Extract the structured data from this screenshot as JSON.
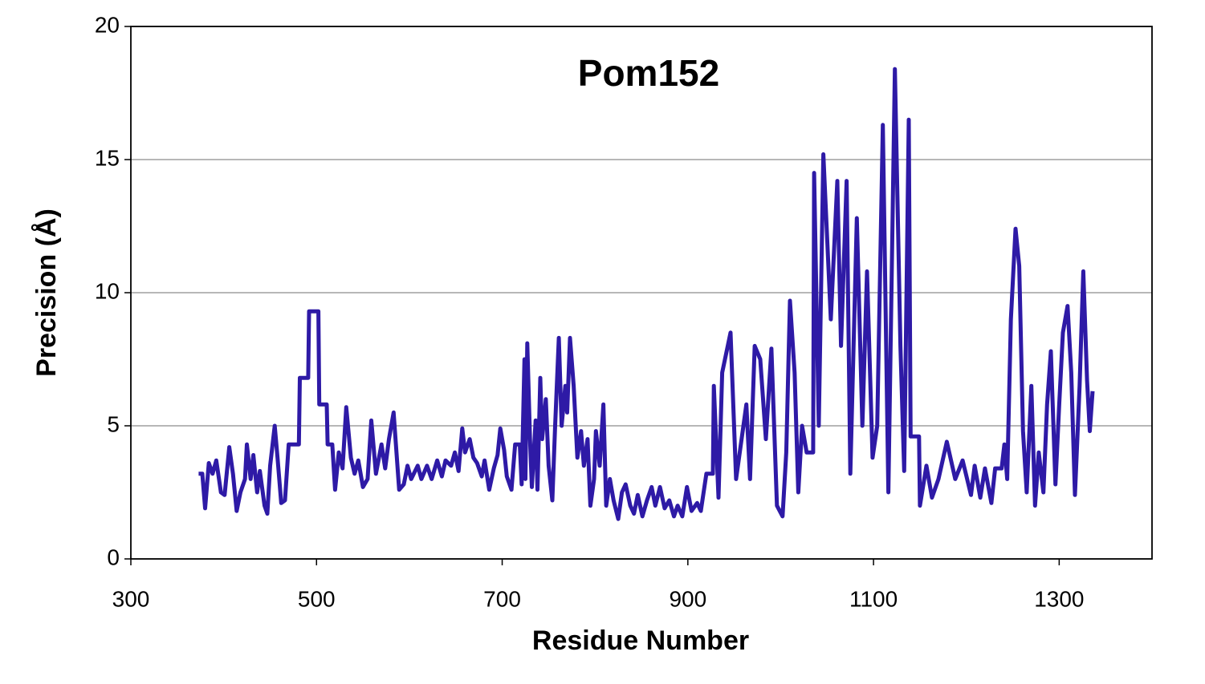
{
  "chart_data": {
    "type": "line",
    "title": "Pom152",
    "x_label": "Residue Number",
    "y_label": "Precision (Å)",
    "color": "#2e1aa6",
    "grid": true,
    "xlim": [
      300,
      1400
    ],
    "xticks": [
      300,
      500,
      700,
      900,
      1100,
      1300
    ],
    "ylim": [
      0,
      20
    ],
    "yticks": [
      0,
      5,
      10,
      15,
      20
    ],
    "x": [
      373,
      377,
      380,
      384,
      388,
      392,
      397,
      401,
      406,
      410,
      414,
      418,
      423,
      425,
      429,
      432,
      436,
      439,
      444,
      447,
      450,
      455,
      458,
      462,
      466,
      470,
      481,
      482,
      491,
      492,
      502,
      503,
      511,
      512,
      517,
      520,
      524,
      528,
      532,
      537,
      541,
      545,
      550,
      555,
      559,
      564,
      570,
      574,
      578,
      583,
      589,
      594,
      598,
      602,
      609,
      613,
      619,
      624,
      630,
      635,
      639,
      645,
      649,
      653,
      657,
      660,
      665,
      669,
      673,
      678,
      681,
      686,
      691,
      695,
      698,
      702,
      705,
      710,
      714,
      719,
      721,
      724,
      725,
      727,
      730,
      732,
      736,
      738,
      741,
      743,
      747,
      750,
      754,
      757,
      761,
      764,
      768,
      770,
      773,
      777,
      781,
      785,
      788,
      792,
      795,
      799,
      801,
      805,
      809,
      812,
      816,
      820,
      825,
      829,
      833,
      838,
      842,
      846,
      851,
      856,
      861,
      865,
      870,
      875,
      880,
      885,
      889,
      894,
      899,
      904,
      910,
      914,
      920,
      927,
      928,
      933,
      937,
      946,
      952,
      963,
      967,
      972,
      978,
      984,
      990,
      996,
      1002,
      1006,
      1010,
      1015,
      1019,
      1023,
      1028,
      1035,
      1036,
      1041,
      1046,
      1054,
      1061,
      1065,
      1071,
      1075,
      1082,
      1088,
      1093,
      1099,
      1104,
      1110,
      1116,
      1123,
      1129,
      1133,
      1138,
      1140,
      1149,
      1150,
      1157,
      1163,
      1170,
      1179,
      1188,
      1196,
      1205,
      1209,
      1215,
      1220,
      1227,
      1231,
      1238,
      1241,
      1244,
      1248,
      1253,
      1257,
      1261,
      1265,
      1270,
      1274,
      1278,
      1283,
      1287,
      1291,
      1296,
      1300,
      1304,
      1309,
      1313,
      1317,
      1322,
      1326,
      1330,
      1333,
      1336
    ],
    "values": [
      3.2,
      3.2,
      1.9,
      3.6,
      3.2,
      3.7,
      2.5,
      2.4,
      4.2,
      3.2,
      1.8,
      2.5,
      3.0,
      4.3,
      3.0,
      3.9,
      2.5,
      3.3,
      2.0,
      1.7,
      3.5,
      5.0,
      3.8,
      2.1,
      2.2,
      4.3,
      4.3,
      6.8,
      6.8,
      9.3,
      9.3,
      5.8,
      5.8,
      4.3,
      4.3,
      2.6,
      4.0,
      3.4,
      5.7,
      3.8,
      3.2,
      3.7,
      2.7,
      3.0,
      5.2,
      3.2,
      4.3,
      3.4,
      4.5,
      5.5,
      2.6,
      2.8,
      3.5,
      3.0,
      3.5,
      3.0,
      3.5,
      3.0,
      3.7,
      3.1,
      3.7,
      3.5,
      4.0,
      3.3,
      4.9,
      4.0,
      4.5,
      3.8,
      3.6,
      3.1,
      3.7,
      2.6,
      3.4,
      3.9,
      4.9,
      4.1,
      3.1,
      2.6,
      4.3,
      4.3,
      2.8,
      7.5,
      3.0,
      8.1,
      4.5,
      2.7,
      5.2,
      2.6,
      6.8,
      4.5,
      6.0,
      3.5,
      2.2,
      5.0,
      8.3,
      5.0,
      6.5,
      5.5,
      8.3,
      6.5,
      3.8,
      4.8,
      3.5,
      4.5,
      2.0,
      3.0,
      4.8,
      3.5,
      5.8,
      2.0,
      3.0,
      2.2,
      1.5,
      2.5,
      2.8,
      2.0,
      1.7,
      2.4,
      1.6,
      2.2,
      2.7,
      2.0,
      2.7,
      1.9,
      2.2,
      1.6,
      2.0,
      1.6,
      2.7,
      1.8,
      2.1,
      1.8,
      3.2,
      3.2,
      6.5,
      2.3,
      7.0,
      8.5,
      3.0,
      5.8,
      3.0,
      8.0,
      7.5,
      4.5,
      7.9,
      2.0,
      1.6,
      4.0,
      9.7,
      7.0,
      2.5,
      5.0,
      4.0,
      4.0,
      14.5,
      5.0,
      15.2,
      9.0,
      14.2,
      8.0,
      14.2,
      3.2,
      12.8,
      5.0,
      10.8,
      3.8,
      5.0,
      16.3,
      2.5,
      18.4,
      8.0,
      3.3,
      16.5,
      4.6,
      4.6,
      2.0,
      3.5,
      2.3,
      3.0,
      4.4,
      3.0,
      3.7,
      2.4,
      3.5,
      2.3,
      3.4,
      2.1,
      3.4,
      3.4,
      4.3,
      3.0,
      9.0,
      12.4,
      11.0,
      4.8,
      2.5,
      6.5,
      2.0,
      4.0,
      2.5,
      5.8,
      7.8,
      2.8,
      5.8,
      8.5,
      9.5,
      7.0,
      2.4,
      6.5,
      10.8,
      6.7,
      4.8,
      6.3
    ]
  }
}
